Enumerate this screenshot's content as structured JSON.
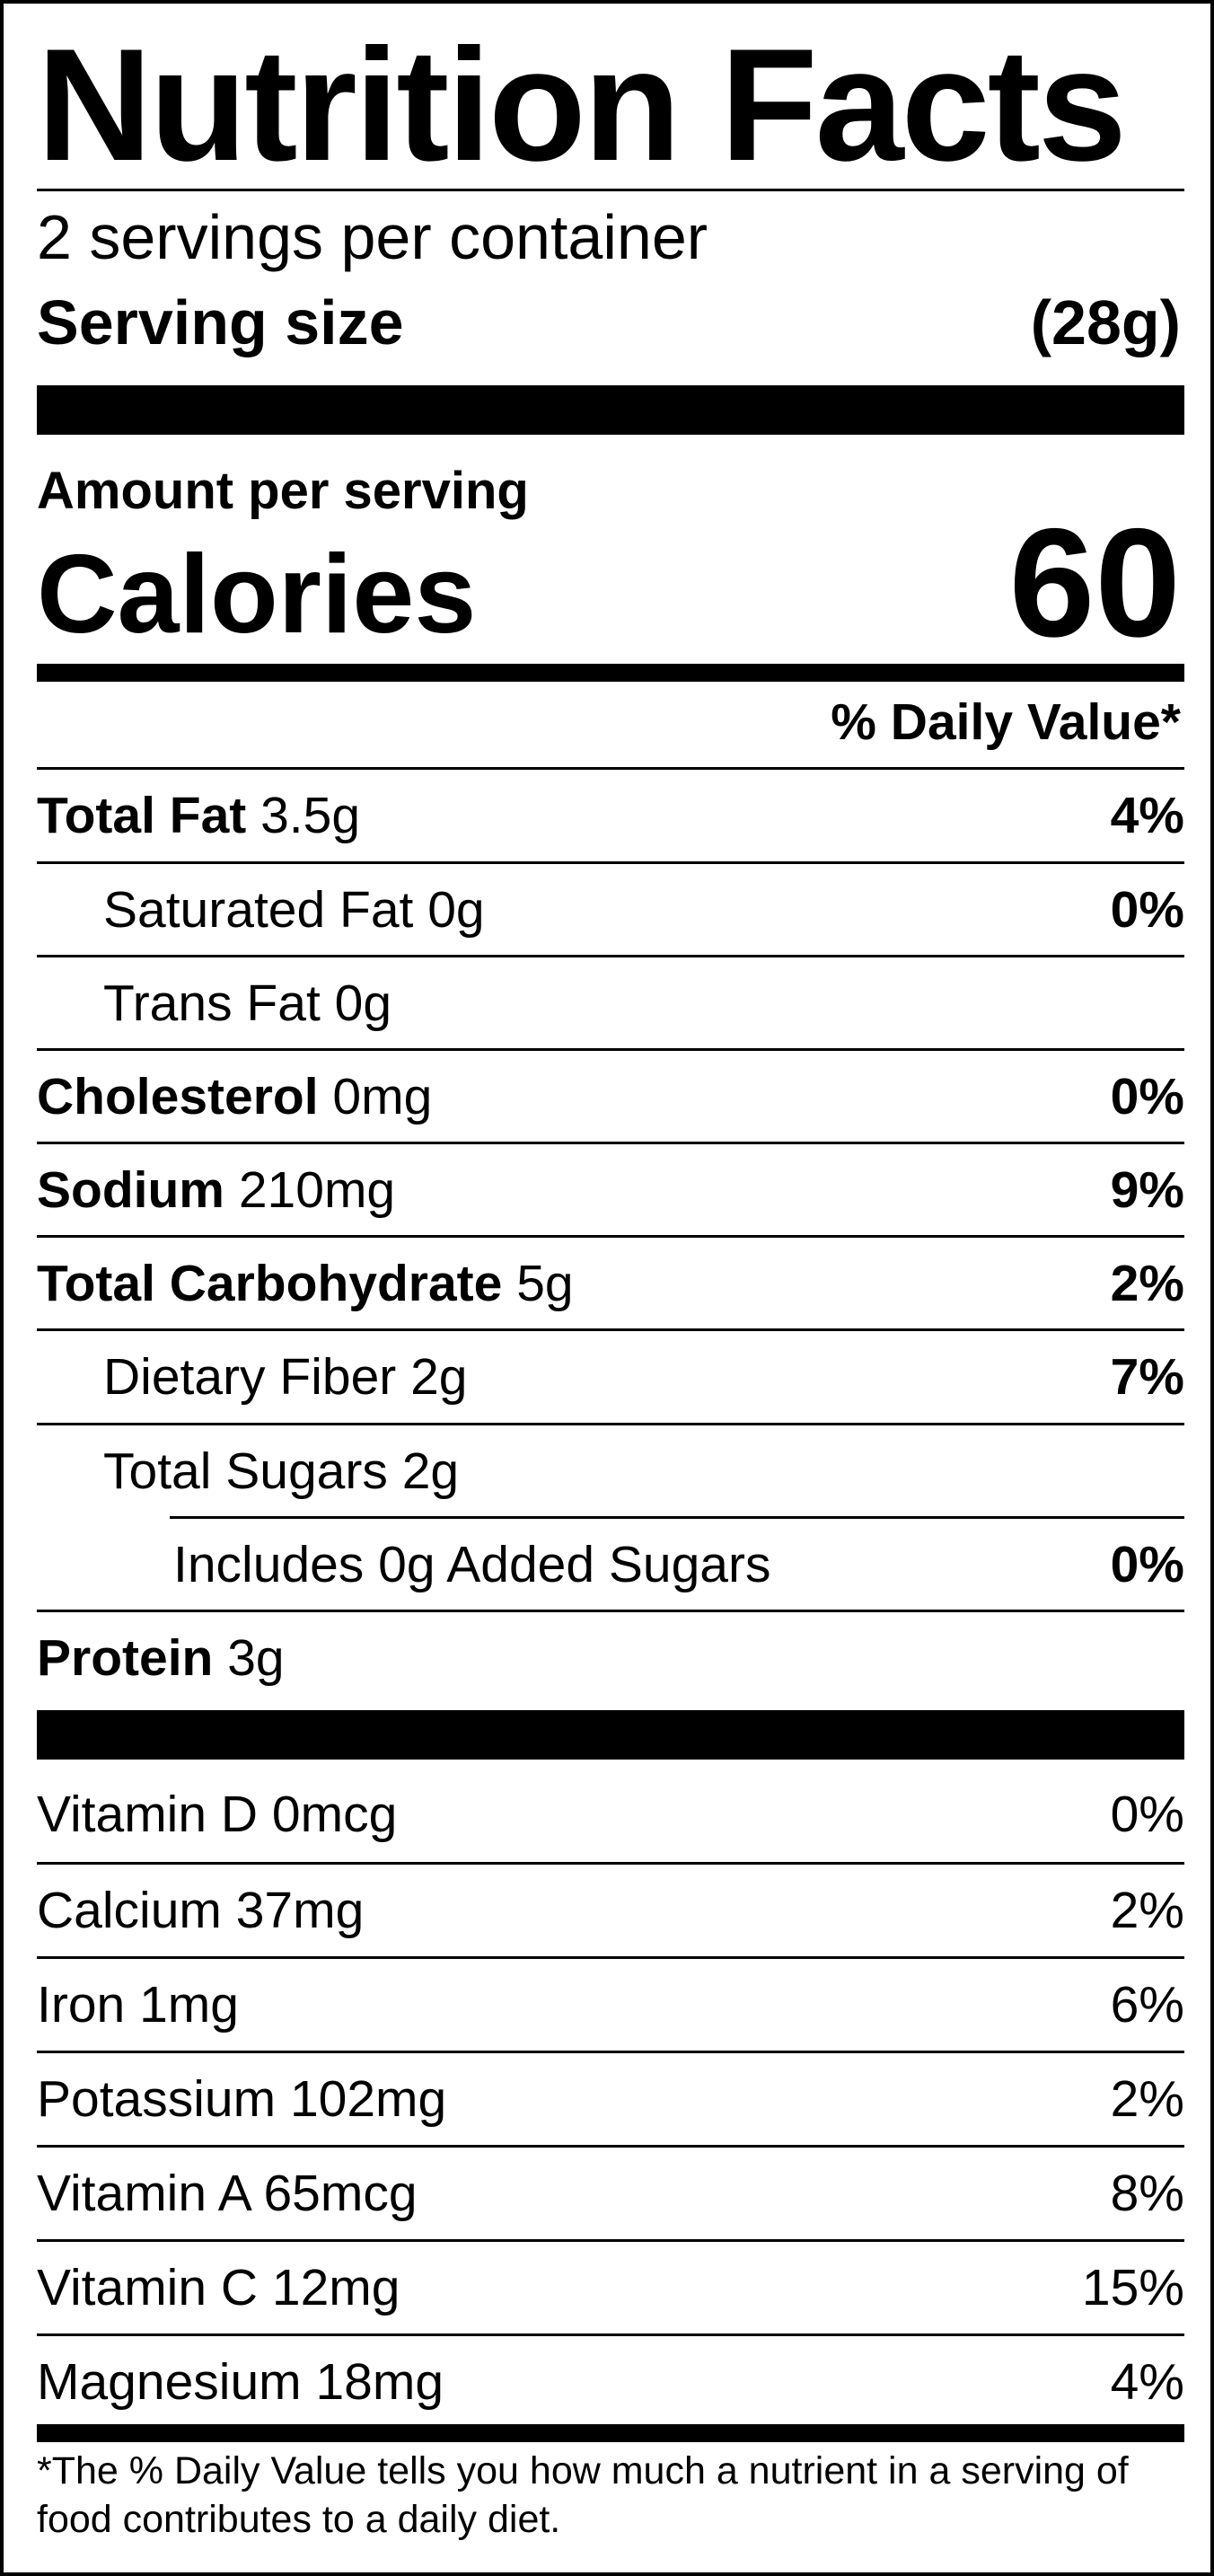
{
  "label": {
    "title": "Nutrition Facts",
    "servings_per_container": "2 servings per container",
    "serving_size_label": "Serving size",
    "serving_size_value": "(28g)",
    "amount_per_serving": "Amount per serving",
    "calories_label": "Calories",
    "calories_value": "60",
    "daily_value_header": "% Daily Value*",
    "nutrients": [
      {
        "name": "Total Fat",
        "amount": "3.5g",
        "dv": "4%"
      },
      {
        "name": "Saturated Fat",
        "amount": "0g",
        "dv": "0%"
      },
      {
        "name": "Trans Fat",
        "amount": "0g",
        "dv": ""
      },
      {
        "name": "Cholesterol",
        "amount": "0mg",
        "dv": "0%"
      },
      {
        "name": "Sodium",
        "amount": "210mg",
        "dv": "9%"
      },
      {
        "name": "Total Carbohydrate",
        "amount": "5g",
        "dv": "2%"
      },
      {
        "name": "Dietary Fiber",
        "amount": "2g",
        "dv": "7%"
      },
      {
        "name": "Total Sugars",
        "amount": "2g",
        "dv": ""
      },
      {
        "name": "Includes 0g Added Sugars",
        "amount": "",
        "dv": "0%"
      },
      {
        "name": "Protein",
        "amount": "3g",
        "dv": ""
      }
    ],
    "vitamins": [
      {
        "name": "Vitamin D",
        "amount": "0mcg",
        "dv": "0%"
      },
      {
        "name": "Calcium",
        "amount": "37mg",
        "dv": "2%"
      },
      {
        "name": "Iron",
        "amount": "1mg",
        "dv": "6%"
      },
      {
        "name": "Potassium",
        "amount": "102mg",
        "dv": "2%"
      },
      {
        "name": "Vitamin A",
        "amount": "65mcg",
        "dv": "8%"
      },
      {
        "name": "Vitamin C",
        "amount": "12mg",
        "dv": "15%"
      },
      {
        "name": "Magnesium",
        "amount": "18mg",
        "dv": "4%"
      }
    ],
    "footnote": "*The % Daily Value tells you how much a nutrient in a serving of food contributes to a daily diet."
  }
}
